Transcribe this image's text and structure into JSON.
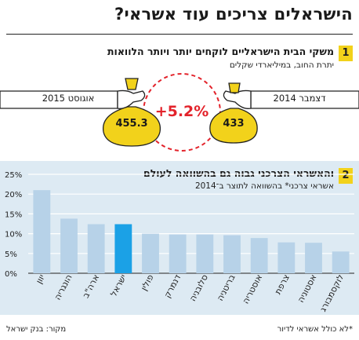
{
  "header": {
    "title": "הישראלים צריכים עוד אשראי?"
  },
  "section1": {
    "number": "1",
    "headline": "משקי הבית הישראליים לוקחים יותר ויותר הלוואות",
    "subtitle": "יתרת החוב, במיליארדי שקלים",
    "left_label": "אוגוסט 2015",
    "left_value": "455.3",
    "right_label": "דצמבר 2014",
    "right_value": "433",
    "change": "+5.2%",
    "colors": {
      "bag": "#f2d21b",
      "accent": "#e3232b"
    }
  },
  "section2": {
    "number": "2",
    "headline": "והאשראי הצרכני גבוה גם בהשוואה לעולם",
    "subtitle": "אשראי צרכני* בהשוואה לתוצר ב־2014"
  },
  "chart_data": {
    "type": "bar",
    "categories": [
      "יוון",
      "הונגריה",
      "ארה\"ב",
      "ישראל",
      "פולין",
      "דנמרק",
      "סלובניה",
      "בריטניה",
      "אוסטריה",
      "צרפת",
      "אסטוניה",
      "לוקסמבורג"
    ],
    "values": [
      21,
      13.8,
      12.4,
      12.4,
      10,
      9.8,
      9.8,
      9.6,
      8.9,
      7.8,
      7.7,
      5.5
    ],
    "highlight": "ישראל",
    "yticks": [
      "0%",
      "5%",
      "10%",
      "15%",
      "20%",
      "25%"
    ],
    "ylim": [
      0,
      25
    ],
    "colors": {
      "bar": "#b7d2e8",
      "highlight": "#1ba1e6",
      "grid": "#ffffff"
    }
  },
  "footer": {
    "source": "מקור: בנק ישראל",
    "note": "*לא כולל אשראי לדיור"
  }
}
